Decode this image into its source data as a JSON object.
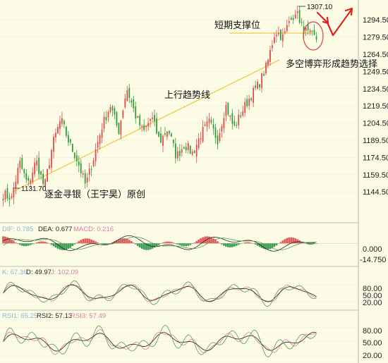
{
  "chart_data": [
    {
      "type": "candlestick",
      "panel": "price",
      "y_ticks": [
        "1294.50",
        "1279.50",
        "1264.50",
        "1249.50",
        "1234.50",
        "1219.50",
        "1204.50",
        "1189.50",
        "1174.50",
        "1159.50",
        "1144.50"
      ],
      "y_tick_values": [
        1294.5,
        1279.5,
        1264.5,
        1249.5,
        1234.5,
        1219.5,
        1204.5,
        1189.5,
        1174.5,
        1159.5,
        1144.5
      ],
      "ylim": [
        1120,
        1310
      ],
      "low_label": "1131.70",
      "low_value": 1131.7,
      "high_label": "1307.10",
      "high_value": 1307.1,
      "close_path": [
        1143,
        1138,
        1170,
        1150,
        1172,
        1148,
        1186,
        1208,
        1187,
        1172,
        1150,
        1175,
        1202,
        1220,
        1197,
        1235,
        1212,
        1196,
        1210,
        1188,
        1200,
        1175,
        1186,
        1178,
        1195,
        1205,
        1190,
        1220,
        1200,
        1215,
        1228,
        1238,
        1255,
        1285,
        1279,
        1300,
        1290,
        1282,
        1278
      ],
      "candle_count": 150,
      "up_color": "#e04a4a",
      "down_color": "#2f9e3a",
      "annotations": {
        "support": "短期支撑位",
        "trendline": "上行趋势线",
        "decision": "多空博弈形成趋势选择",
        "credit": "逐金寻银（王宇昊）原创"
      }
    },
    {
      "type": "bar",
      "panel": "macd",
      "legend": [
        {
          "text": "DIF: 0.785",
          "color": "#8fb8d8"
        },
        {
          "text": "DEA: 0.677",
          "color": "#222222"
        },
        {
          "text": "MACD: 0.216",
          "color": "#e07aa8"
        }
      ],
      "y_ticks": [
        "0.000",
        "-14.750"
      ],
      "y_tick_values": [
        0,
        -14.75
      ],
      "ylim": [
        -18,
        16
      ]
    },
    {
      "type": "line",
      "panel": "kdj",
      "legend": [
        {
          "text": "K: 67.36",
          "color": "#8fb8d8"
        },
        {
          "text": "D: 49.97",
          "color": "#222222"
        },
        {
          "text": "J: 102.09",
          "color": "#e07aa8"
        }
      ],
      "y_ticks": [
        "80.00",
        "50.00",
        "20.00"
      ],
      "y_tick_values": [
        80,
        50,
        20
      ],
      "ylim": [
        0,
        110
      ]
    },
    {
      "type": "line",
      "panel": "rsi",
      "legend": [
        {
          "text": "RSI1: 65.25",
          "color": "#8fb8d8"
        },
        {
          "text": "RSI2: 57.13",
          "color": "#222222"
        },
        {
          "text": "RSI3: 57.49",
          "color": "#e07aa8"
        }
      ],
      "y_ticks": [
        "80.00",
        "50.00",
        "20.00"
      ],
      "y_tick_values": [
        80,
        50,
        20
      ],
      "ylim": [
        10,
        95
      ]
    }
  ],
  "colors": {
    "background": "#fbfbe6",
    "grid": "#b8c8a8",
    "trendline": "#f2c84a",
    "support_line": "#f2c84a",
    "arrow": "#e02020",
    "circle": "#e04040"
  }
}
